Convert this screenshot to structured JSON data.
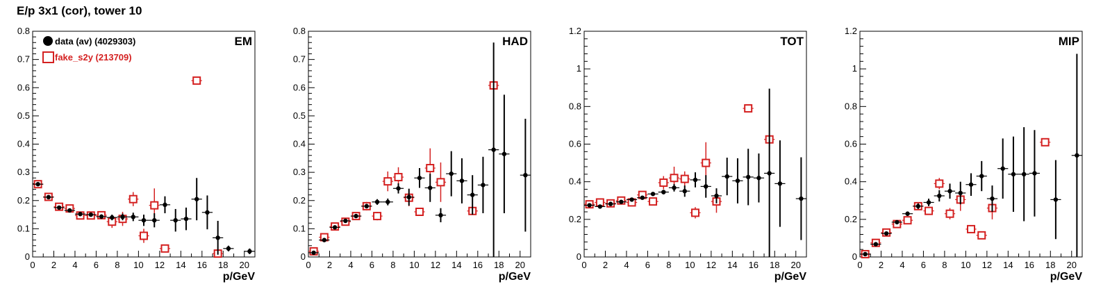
{
  "title": "E/p 3x1 (cor), tower 10",
  "colors": {
    "data": "#000000",
    "fake": "#d42020"
  },
  "chart_data": [
    {
      "type": "scatter",
      "panel_label": "EM",
      "xlabel": "p/GeV",
      "xlim": [
        0,
        21
      ],
      "ylim": [
        0,
        0.8
      ],
      "xticks": [
        0,
        2,
        4,
        6,
        8,
        10,
        12,
        14,
        16,
        18,
        20
      ],
      "yticks": [
        0,
        0.1,
        0.2,
        0.3,
        0.4,
        0.5,
        0.6,
        0.7,
        0.8
      ],
      "legend": [
        {
          "label": "data (av) (4029303)",
          "marker": "filled-circle",
          "color": "#000000"
        },
        {
          "label": "fake_s2y (213709)",
          "marker": "open-square",
          "color": "#d42020"
        }
      ],
      "series": [
        {
          "name": "data (av) (4029303)",
          "points": [
            [
              0.5,
              0.258,
              0.004
            ],
            [
              1.5,
              0.212,
              0.003
            ],
            [
              2.5,
              0.175,
              0.003
            ],
            [
              3.5,
              0.165,
              0.004
            ],
            [
              4.5,
              0.152,
              0.005
            ],
            [
              5.5,
              0.15,
              0.006
            ],
            [
              6.5,
              0.143,
              0.008
            ],
            [
              7.5,
              0.14,
              0.01
            ],
            [
              8.5,
              0.142,
              0.012
            ],
            [
              9.5,
              0.142,
              0.015
            ],
            [
              10.5,
              0.13,
              0.02
            ],
            [
              11.5,
              0.13,
              0.025
            ],
            [
              12.5,
              0.185,
              0.03
            ],
            [
              13.5,
              0.13,
              0.04
            ],
            [
              14.5,
              0.135,
              0.04
            ],
            [
              15.5,
              0.205,
              0.075
            ],
            [
              16.5,
              0.158,
              0.06
            ],
            [
              17.5,
              0.068,
              0.06
            ],
            [
              18.5,
              0.03,
              0.01
            ],
            [
              20.5,
              0.02,
              0.01
            ]
          ]
        },
        {
          "name": "fake_s2y (213709)",
          "points": [
            [
              0.5,
              0.258,
              0.006
            ],
            [
              1.5,
              0.213,
              0.006
            ],
            [
              2.5,
              0.178,
              0.006
            ],
            [
              3.5,
              0.172,
              0.007
            ],
            [
              4.5,
              0.147,
              0.008
            ],
            [
              5.5,
              0.147,
              0.01
            ],
            [
              6.5,
              0.148,
              0.012
            ],
            [
              7.5,
              0.125,
              0.022
            ],
            [
              8.5,
              0.135,
              0.025
            ],
            [
              9.5,
              0.205,
              0.025
            ],
            [
              10.5,
              0.075,
              0.025
            ],
            [
              11.5,
              0.183,
              0.06
            ],
            [
              12.5,
              0.03,
              0.01
            ],
            [
              15.5,
              0.625,
              0.01
            ],
            [
              17.5,
              0.012,
              0.01
            ]
          ]
        }
      ]
    },
    {
      "type": "scatter",
      "panel_label": "HAD",
      "xlabel": "p/GeV",
      "xlim": [
        0,
        21
      ],
      "ylim": [
        0,
        0.8
      ],
      "xticks": [
        0,
        2,
        4,
        6,
        8,
        10,
        12,
        14,
        16,
        18,
        20
      ],
      "yticks": [
        0,
        0.1,
        0.2,
        0.3,
        0.4,
        0.5,
        0.6,
        0.7,
        0.8
      ],
      "series": [
        {
          "name": "data (av) (4029303)",
          "points": [
            [
              0.5,
              0.015,
              0.003
            ],
            [
              1.5,
              0.06,
              0.004
            ],
            [
              2.5,
              0.105,
              0.005
            ],
            [
              3.5,
              0.128,
              0.006
            ],
            [
              4.5,
              0.145,
              0.007
            ],
            [
              5.5,
              0.18,
              0.008
            ],
            [
              6.5,
              0.195,
              0.01
            ],
            [
              7.5,
              0.195,
              0.012
            ],
            [
              8.5,
              0.243,
              0.018
            ],
            [
              9.5,
              0.212,
              0.03
            ],
            [
              10.5,
              0.28,
              0.035
            ],
            [
              11.5,
              0.245,
              0.05
            ],
            [
              12.5,
              0.148,
              0.025
            ],
            [
              13.5,
              0.295,
              0.08
            ],
            [
              14.5,
              0.27,
              0.08
            ],
            [
              15.5,
              0.22,
              0.07
            ],
            [
              16.5,
              0.255,
              0.1
            ],
            [
              17.5,
              0.38,
              0.38
            ],
            [
              18.5,
              0.365,
              0.21
            ],
            [
              20.5,
              0.29,
              0.2
            ]
          ]
        },
        {
          "name": "fake_s2y (213709)",
          "points": [
            [
              0.5,
              0.02,
              0.008
            ],
            [
              1.5,
              0.07,
              0.008
            ],
            [
              2.5,
              0.108,
              0.008
            ],
            [
              3.5,
              0.125,
              0.01
            ],
            [
              4.5,
              0.145,
              0.012
            ],
            [
              5.5,
              0.18,
              0.015
            ],
            [
              6.5,
              0.145,
              0.015
            ],
            [
              7.5,
              0.268,
              0.035
            ],
            [
              8.5,
              0.283,
              0.035
            ],
            [
              9.5,
              0.21,
              0.03
            ],
            [
              10.5,
              0.16,
              0.01
            ],
            [
              11.5,
              0.315,
              0.07
            ],
            [
              12.5,
              0.265,
              0.07
            ],
            [
              15.5,
              0.163,
              0.01
            ],
            [
              17.5,
              0.608,
              0.01
            ]
          ]
        }
      ]
    },
    {
      "type": "scatter",
      "panel_label": "TOT",
      "xlabel": "p/GeV",
      "xlim": [
        0,
        21
      ],
      "ylim": [
        0,
        1.2
      ],
      "xticks": [
        0,
        2,
        4,
        6,
        8,
        10,
        12,
        14,
        16,
        18,
        20
      ],
      "yticks": [
        0,
        0.2,
        0.4,
        0.6,
        0.8,
        1,
        1.2
      ],
      "series": [
        {
          "name": "data (av) (4029303)",
          "points": [
            [
              0.5,
              0.275,
              0.004
            ],
            [
              1.5,
              0.268,
              0.004
            ],
            [
              2.5,
              0.282,
              0.004
            ],
            [
              3.5,
              0.293,
              0.005
            ],
            [
              4.5,
              0.305,
              0.006
            ],
            [
              5.5,
              0.315,
              0.007
            ],
            [
              6.5,
              0.335,
              0.01
            ],
            [
              7.5,
              0.345,
              0.012
            ],
            [
              8.5,
              0.368,
              0.02
            ],
            [
              9.5,
              0.35,
              0.03
            ],
            [
              10.5,
              0.41,
              0.04
            ],
            [
              11.5,
              0.375,
              0.06
            ],
            [
              12.5,
              0.325,
              0.04
            ],
            [
              13.5,
              0.428,
              0.1
            ],
            [
              14.5,
              0.405,
              0.12
            ],
            [
              15.5,
              0.425,
              0.15
            ],
            [
              16.5,
              0.42,
              0.13
            ],
            [
              17.5,
              0.445,
              0.45
            ],
            [
              18.5,
              0.39,
              0.23
            ],
            [
              20.5,
              0.31,
              0.22
            ]
          ]
        },
        {
          "name": "fake_s2y (213709)",
          "points": [
            [
              0.5,
              0.28,
              0.01
            ],
            [
              1.5,
              0.29,
              0.01
            ],
            [
              2.5,
              0.285,
              0.01
            ],
            [
              3.5,
              0.3,
              0.012
            ],
            [
              4.5,
              0.29,
              0.015
            ],
            [
              5.5,
              0.33,
              0.015
            ],
            [
              6.5,
              0.295,
              0.015
            ],
            [
              7.5,
              0.395,
              0.035
            ],
            [
              8.5,
              0.42,
              0.06
            ],
            [
              9.5,
              0.415,
              0.04
            ],
            [
              10.5,
              0.235,
              0.03
            ],
            [
              11.5,
              0.5,
              0.11
            ],
            [
              12.5,
              0.295,
              0.06
            ],
            [
              15.5,
              0.79,
              0.01
            ],
            [
              17.5,
              0.625,
              0.01
            ]
          ]
        }
      ]
    },
    {
      "type": "scatter",
      "panel_label": "MIP",
      "xlabel": "p/GeV",
      "xlim": [
        0,
        21
      ],
      "ylim": [
        0,
        1.2
      ],
      "xticks": [
        0,
        2,
        4,
        6,
        8,
        10,
        12,
        14,
        16,
        18,
        20
      ],
      "yticks": [
        0,
        0.2,
        0.4,
        0.6,
        0.8,
        1,
        1.2
      ],
      "series": [
        {
          "name": "data (av) (4029303)",
          "points": [
            [
              0.5,
              0.015,
              0.005
            ],
            [
              1.5,
              0.068,
              0.006
            ],
            [
              2.5,
              0.125,
              0.008
            ],
            [
              3.5,
              0.185,
              0.01
            ],
            [
              4.5,
              0.23,
              0.012
            ],
            [
              5.5,
              0.27,
              0.015
            ],
            [
              6.5,
              0.29,
              0.02
            ],
            [
              7.5,
              0.325,
              0.03
            ],
            [
              8.5,
              0.35,
              0.04
            ],
            [
              9.5,
              0.34,
              0.06
            ],
            [
              10.5,
              0.385,
              0.06
            ],
            [
              11.5,
              0.43,
              0.08
            ],
            [
              12.5,
              0.31,
              0.07
            ],
            [
              13.5,
              0.47,
              0.16
            ],
            [
              14.5,
              0.44,
              0.2
            ],
            [
              15.5,
              0.44,
              0.25
            ],
            [
              16.5,
              0.445,
              0.23
            ],
            [
              18.5,
              0.305,
              0.21
            ],
            [
              20.5,
              0.54,
              0.54
            ]
          ]
        },
        {
          "name": "fake_s2y (213709)",
          "points": [
            [
              0.5,
              0.015,
              0.008
            ],
            [
              1.5,
              0.075,
              0.01
            ],
            [
              2.5,
              0.13,
              0.012
            ],
            [
              3.5,
              0.175,
              0.015
            ],
            [
              4.5,
              0.195,
              0.015
            ],
            [
              5.5,
              0.27,
              0.02
            ],
            [
              6.5,
              0.245,
              0.02
            ],
            [
              7.5,
              0.39,
              0.03
            ],
            [
              8.5,
              0.23,
              0.03
            ],
            [
              9.5,
              0.305,
              0.06
            ],
            [
              10.5,
              0.148,
              0.01
            ],
            [
              11.5,
              0.115,
              0.01
            ],
            [
              12.5,
              0.26,
              0.06
            ],
            [
              17.5,
              0.61,
              0.01
            ]
          ]
        }
      ]
    }
  ]
}
